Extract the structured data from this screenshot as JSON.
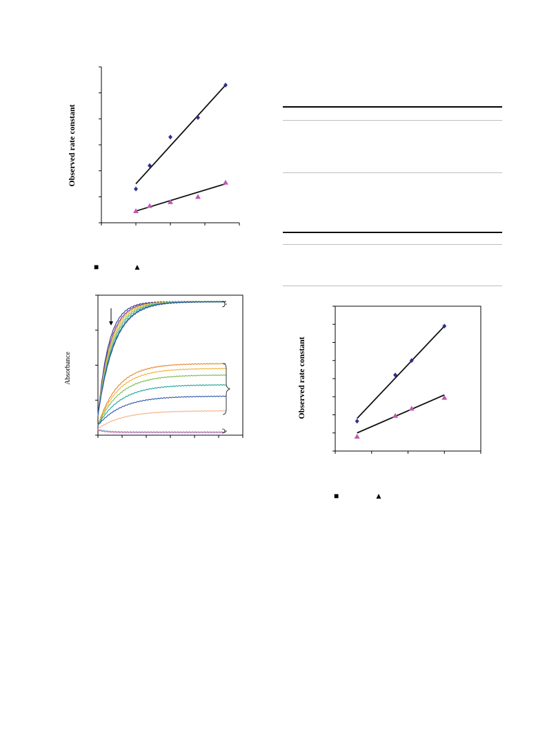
{
  "chart_data": [
    {
      "type": "scatter",
      "title": "",
      "xlabel": "",
      "ylabel": "Observed rate constant",
      "xlim": [
        0,
        4
      ],
      "ylim": [
        0,
        6
      ],
      "x_ticks": 4,
      "y_ticks": 6,
      "grid": false,
      "series": [
        {
          "marker": "diamond",
          "color": "#2e3192",
          "points": [
            [
              1.0,
              1.3
            ],
            [
              1.4,
              2.2
            ],
            [
              2.0,
              3.3
            ],
            [
              2.8,
              4.05
            ],
            [
              3.6,
              5.3
            ]
          ],
          "fit": [
            [
              1.0,
              1.5
            ],
            [
              3.6,
              5.3
            ]
          ]
        },
        {
          "marker": "triangle",
          "color": "#c157b5",
          "points": [
            [
              1.0,
              0.45
            ],
            [
              1.4,
              0.65
            ],
            [
              2.0,
              0.8
            ],
            [
              2.8,
              1.0
            ],
            [
              3.6,
              1.55
            ]
          ],
          "fit": [
            [
              1.0,
              0.45
            ],
            [
              3.6,
              1.5
            ]
          ]
        }
      ]
    },
    {
      "type": "line",
      "title": "",
      "xlabel": "",
      "ylabel": "Absorbance",
      "xlim": [
        0,
        6
      ],
      "ylim": [
        0,
        4.3
      ],
      "x_ticks": 6,
      "y_ticks": 4,
      "grid": false,
      "series": [
        {
          "color": "#3a2d8f",
          "start": 0.6,
          "plateau": 4.1,
          "k": 2.2
        },
        {
          "color": "#5a3fa0",
          "start": 0.6,
          "plateau": 4.1,
          "k": 2.0
        },
        {
          "color": "#e6a23c",
          "start": 0.6,
          "plateau": 4.1,
          "k": 1.9
        },
        {
          "color": "#f3c74a",
          "start": 0.6,
          "plateau": 4.1,
          "k": 1.8
        },
        {
          "color": "#9bc85a",
          "start": 0.6,
          "plateau": 4.1,
          "k": 1.7
        },
        {
          "color": "#3fb3a8",
          "start": 0.6,
          "plateau": 4.1,
          "k": 1.6
        },
        {
          "color": "#1f7f7a",
          "start": 0.6,
          "plateau": 4.1,
          "k": 1.5
        },
        {
          "color": "#2b4fa3",
          "start": 0.6,
          "plateau": 4.1,
          "k": 1.45
        },
        {
          "color": "#e8832a",
          "start": 0.3,
          "plateau": 2.2,
          "k": 1.2
        },
        {
          "color": "#f0b234",
          "start": 0.3,
          "plateau": 2.05,
          "k": 1.15
        },
        {
          "color": "#7cba4a",
          "start": 0.3,
          "plateau": 1.85,
          "k": 1.1
        },
        {
          "color": "#1aa39a",
          "start": 0.3,
          "plateau": 1.55,
          "k": 1.05
        },
        {
          "color": "#2c55a8",
          "start": 0.3,
          "plateau": 1.2,
          "k": 1.0
        },
        {
          "color": "#f4b38a",
          "start": 0.2,
          "plateau": 0.75,
          "k": 0.95
        },
        {
          "color": "#7fb0d6",
          "start": 0.18,
          "plateau": 0.1,
          "k": 3.0
        },
        {
          "color": "#d67ab8",
          "start": 0.15,
          "plateau": 0.08,
          "k": 3.0
        }
      ]
    },
    {
      "type": "scatter",
      "title": "",
      "xlabel": "",
      "ylabel": "Observed rate constant",
      "xlim": [
        0,
        4
      ],
      "ylim": [
        0,
        8
      ],
      "x_ticks": 4,
      "y_ticks": 8,
      "grid": false,
      "series": [
        {
          "marker": "diamond",
          "color": "#2e3192",
          "points": [
            [
              0.6,
              1.65
            ],
            [
              1.65,
              4.2
            ],
            [
              2.1,
              5.0
            ],
            [
              3.0,
              6.9
            ]
          ],
          "fit": [
            [
              0.6,
              1.8
            ],
            [
              3.0,
              6.9
            ]
          ]
        },
        {
          "marker": "triangle",
          "color": "#c157b5",
          "points": [
            [
              0.6,
              0.8
            ],
            [
              1.65,
              1.95
            ],
            [
              2.1,
              2.35
            ],
            [
              3.0,
              2.95
            ]
          ],
          "fit": [
            [
              0.6,
              1.0
            ],
            [
              3.0,
              3.1
            ]
          ]
        }
      ]
    }
  ],
  "legend": {
    "square_symbol": "■",
    "triangle_symbol": "▲"
  }
}
